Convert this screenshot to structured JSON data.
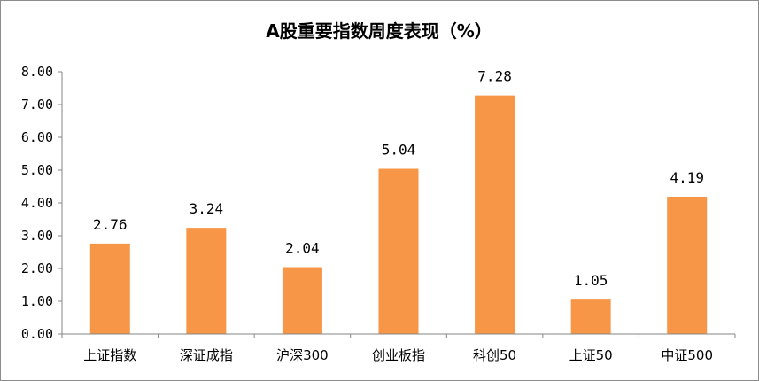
{
  "chart_data": {
    "type": "bar",
    "title": "A股重要指数周度表现（%）",
    "categories": [
      "上证指数",
      "深证成指",
      "沪深300",
      "创业板指",
      "科创50",
      "上证50",
      "中证500"
    ],
    "values": [
      2.76,
      3.24,
      2.04,
      5.04,
      7.28,
      1.05,
      4.19
    ],
    "data_labels": [
      "2.76",
      "3.24",
      "2.04",
      "5.04",
      "7.28",
      "1.05",
      "4.19"
    ],
    "xlabel": "",
    "ylabel": "",
    "ylim": [
      0,
      8
    ],
    "yticks": [
      "0.00",
      "1.00",
      "2.00",
      "3.00",
      "4.00",
      "5.00",
      "6.00",
      "7.00",
      "8.00"
    ],
    "grid": false,
    "legend": "none",
    "bar_color": "#F79646",
    "axis_color": "#868686"
  }
}
